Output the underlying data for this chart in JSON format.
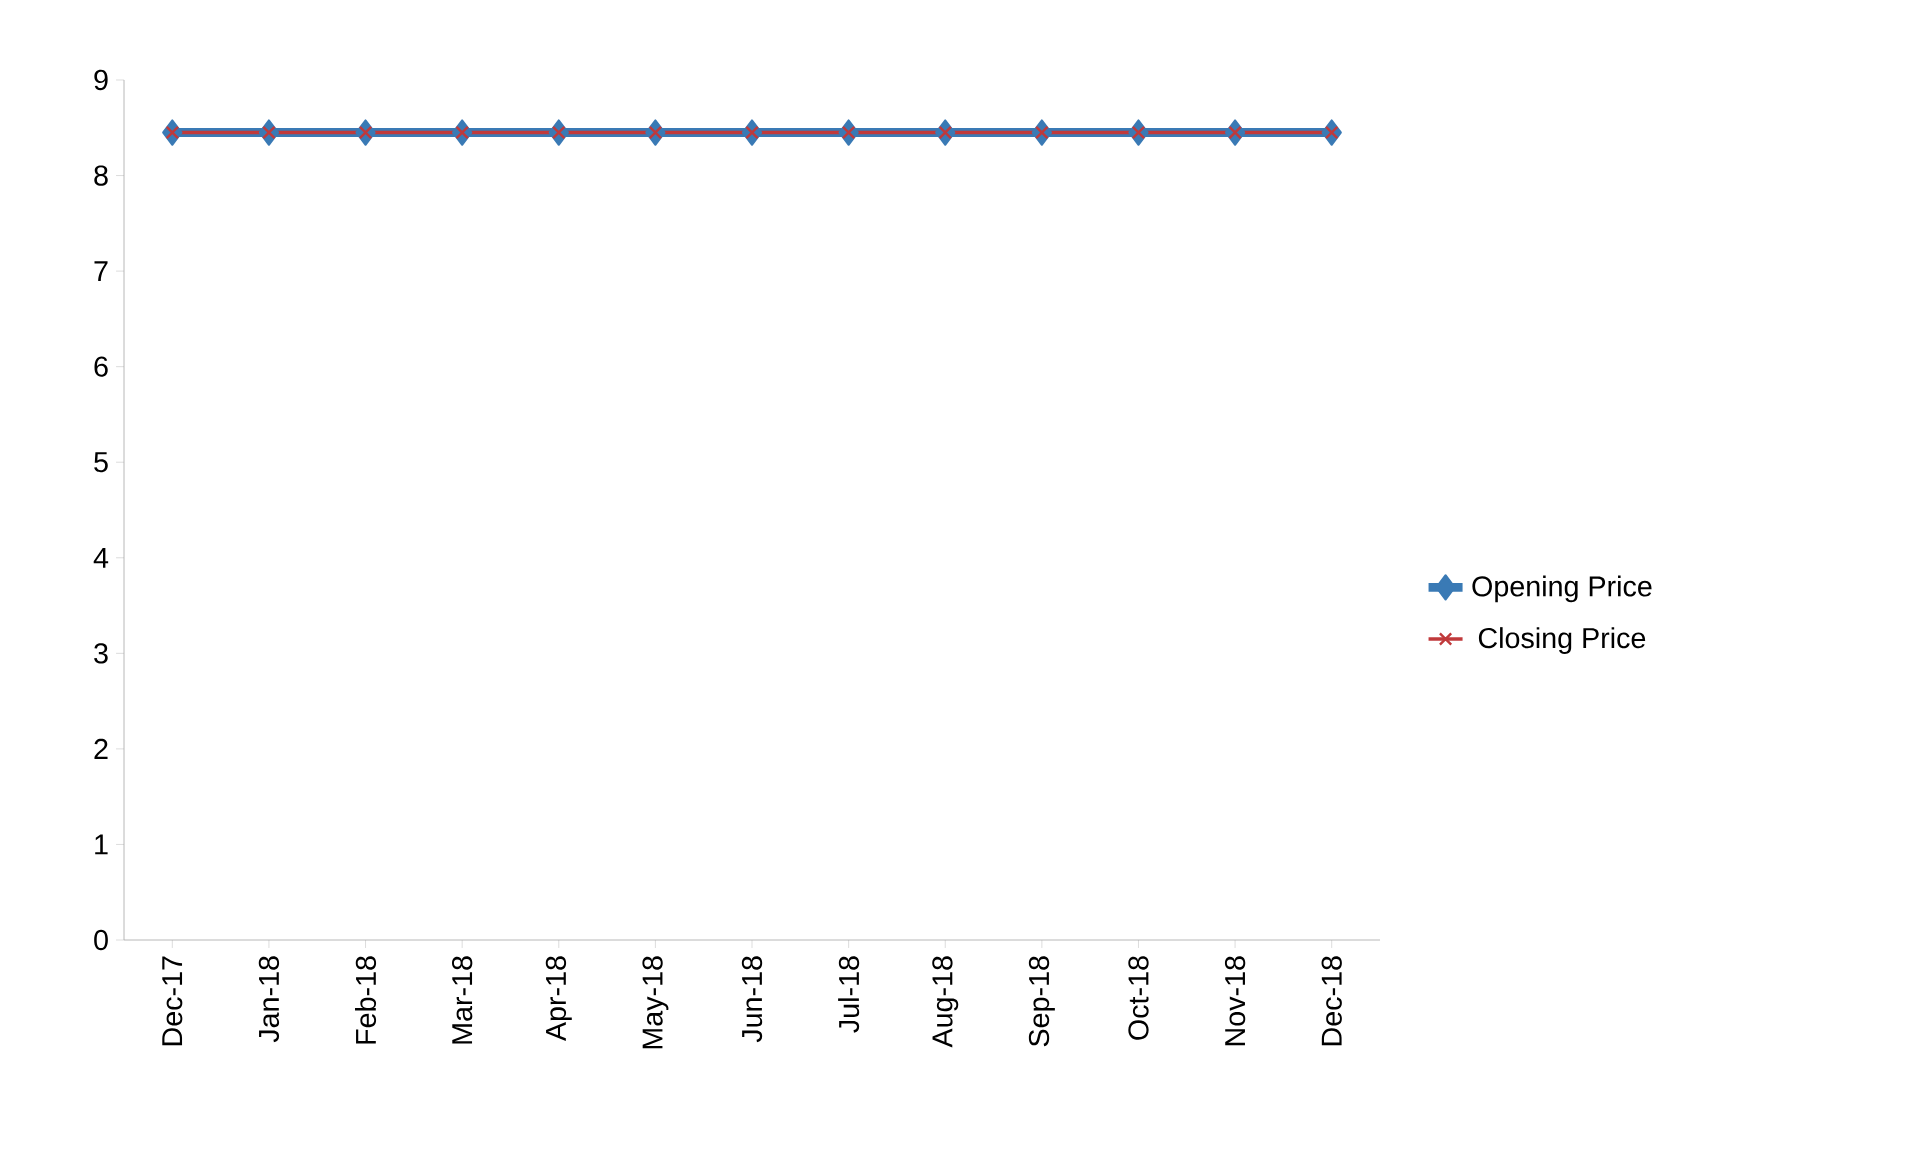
{
  "chart_data": {
    "type": "line",
    "categories": [
      "Dec-17",
      "Jan-18",
      "Feb-18",
      "Mar-18",
      "Apr-18",
      "May-18",
      "Jun-18",
      "Jul-18",
      "Aug-18",
      "Sep-18",
      "Oct-18",
      "Nov-18",
      "Dec-18"
    ],
    "series": [
      {
        "name": "Opening Price",
        "color": "#3a7ab5",
        "marker": "diamond",
        "values": [
          8.45,
          8.45,
          8.45,
          8.45,
          8.45,
          8.45,
          8.45,
          8.45,
          8.45,
          8.45,
          8.45,
          8.45,
          8.45
        ]
      },
      {
        "name": "Closing Price",
        "color": "#c0393b",
        "marker": "cross",
        "values": [
          8.45,
          8.45,
          8.45,
          8.45,
          8.45,
          8.45,
          8.45,
          8.45,
          8.45,
          8.45,
          8.45,
          8.45,
          8.45
        ]
      }
    ],
    "ylim": [
      0,
      9
    ],
    "yticks": [
      0,
      1,
      2,
      3,
      4,
      5,
      6,
      7,
      8,
      9
    ],
    "grid": false,
    "legend": "right"
  }
}
